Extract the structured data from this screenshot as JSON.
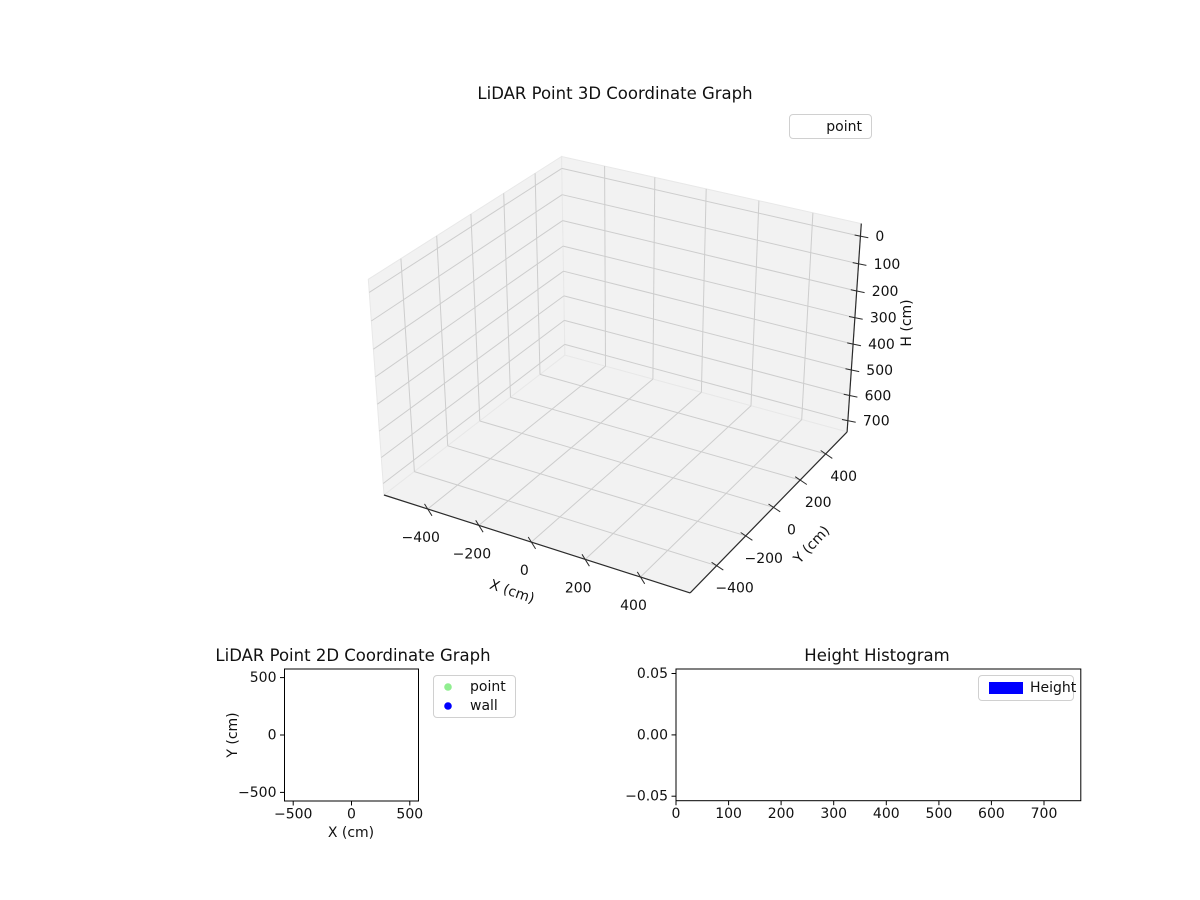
{
  "figure": {
    "background": "#ffffff"
  },
  "chart_data": [
    {
      "type": "scatter3d",
      "title": "LiDAR Point 3D Coordinate Graph",
      "x": {
        "label": "X (cm)",
        "lim": [
          -575,
          575
        ],
        "tick_values": [
          -400,
          -200,
          0,
          200,
          400
        ],
        "tick_labels": [
          "−400",
          "−200",
          "0",
          "200",
          "400"
        ]
      },
      "y": {
        "label": "Y (cm)",
        "lim": [
          -575,
          575
        ],
        "tick_values": [
          -400,
          -200,
          0,
          200,
          400
        ],
        "tick_labels": [
          "−400",
          "−200",
          "0",
          "200",
          "400"
        ]
      },
      "h": {
        "label": "H (cm)",
        "lim": [
          -45,
          745
        ],
        "inverted": true,
        "tick_values": [
          0,
          100,
          200,
          300,
          400,
          500,
          600,
          700
        ],
        "tick_labels": [
          "0",
          "100",
          "200",
          "300",
          "400",
          "500",
          "600",
          "700"
        ]
      },
      "legend": [
        {
          "label": "point",
          "marker": "none"
        }
      ],
      "points": [],
      "colors": {
        "pane": "#f2f2f2",
        "pane_edge": "#e8e8e8",
        "grid": "#cdcdcd",
        "axis_line": "#2b2b2b"
      }
    },
    {
      "type": "scatter",
      "title": "LiDAR Point 2D Coordinate Graph",
      "x": {
        "label": "X (cm)",
        "lim": [
          -575,
          575
        ],
        "tick_values": [
          -500,
          0,
          500
        ],
        "tick_labels": [
          "−500",
          "0",
          "500"
        ]
      },
      "y": {
        "label": "Y (cm)",
        "lim": [
          -575,
          575
        ],
        "tick_values": [
          500,
          0,
          -500
        ],
        "tick_labels": [
          "500",
          "0",
          "−500"
        ]
      },
      "series": [
        {
          "name": "point",
          "color": "#90ee90",
          "points": []
        },
        {
          "name": "wall",
          "color": "#0000ff",
          "points": []
        }
      ]
    },
    {
      "type": "bar",
      "title": "Height Histogram",
      "x": {
        "label": "",
        "lim": [
          0,
          770
        ],
        "tick_values": [
          0,
          100,
          200,
          300,
          400,
          500,
          600,
          700
        ],
        "tick_labels": [
          "0",
          "100",
          "200",
          "300",
          "400",
          "500",
          "600",
          "700"
        ]
      },
      "y": {
        "label": "",
        "lim": [
          -0.0537,
          0.0537
        ],
        "tick_values": [
          0.05,
          0,
          -0.05
        ],
        "tick_labels": [
          "0.05",
          "0.00",
          "−0.05"
        ]
      },
      "series": [
        {
          "name": "Height",
          "color": "#0000ff",
          "values": []
        }
      ]
    }
  ]
}
